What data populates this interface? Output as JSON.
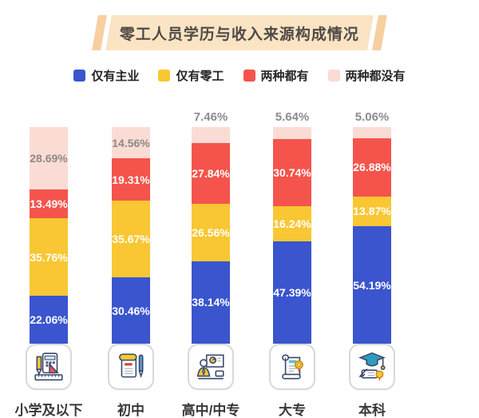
{
  "title": "零工人员学历与收入来源构成情况",
  "legend": [
    {
      "label": "仅有主业",
      "color": "#3A55CE"
    },
    {
      "label": "仅有零工",
      "color": "#F9C733"
    },
    {
      "label": "两种都有",
      "color": "#F4544C"
    },
    {
      "label": "两种都没有",
      "color": "#FBDCD4"
    }
  ],
  "chart_data": {
    "type": "bar",
    "stacked": true,
    "unit": "%",
    "ylim": [
      0,
      100
    ],
    "grid": false,
    "legend_position": "top",
    "categories": [
      "小学及以下",
      "初中",
      "高中/中专",
      "大专",
      "本科"
    ],
    "series": [
      {
        "key": "main-job-only",
        "name": "仅有主业",
        "color": "#3A55CE",
        "values": [
          22.06,
          30.46,
          38.14,
          47.39,
          54.19
        ]
      },
      {
        "key": "gig-only",
        "name": "仅有零工",
        "color": "#F9C733",
        "values": [
          35.76,
          35.67,
          26.56,
          16.24,
          13.87
        ]
      },
      {
        "key": "both",
        "name": "两种都有",
        "color": "#F4544C",
        "values": [
          13.49,
          19.31,
          27.84,
          30.74,
          26.88
        ]
      },
      {
        "key": "neither",
        "name": "两种都没有",
        "color": "#FBDCD4",
        "label_color": "#8F8885",
        "label_positions": [
          "inside",
          "inside",
          "above",
          "above",
          "above"
        ],
        "values": [
          28.69,
          14.56,
          7.46,
          5.64,
          5.06
        ]
      }
    ],
    "value_labels": true
  },
  "category_icons": [
    "calculator-stationery-icon",
    "notebook-pen-icon",
    "presentation-teacher-icon",
    "diploma-scroll-icon",
    "graduation-cap-icon"
  ],
  "colors": {
    "banner_fill": "#FBE4C4",
    "banner_slash": "#F7CFA0",
    "title_text": "#4F4A45",
    "above_label": "#8C8C8C",
    "inside_label": "#FFFFFF",
    "background": "#FFFFFF"
  }
}
